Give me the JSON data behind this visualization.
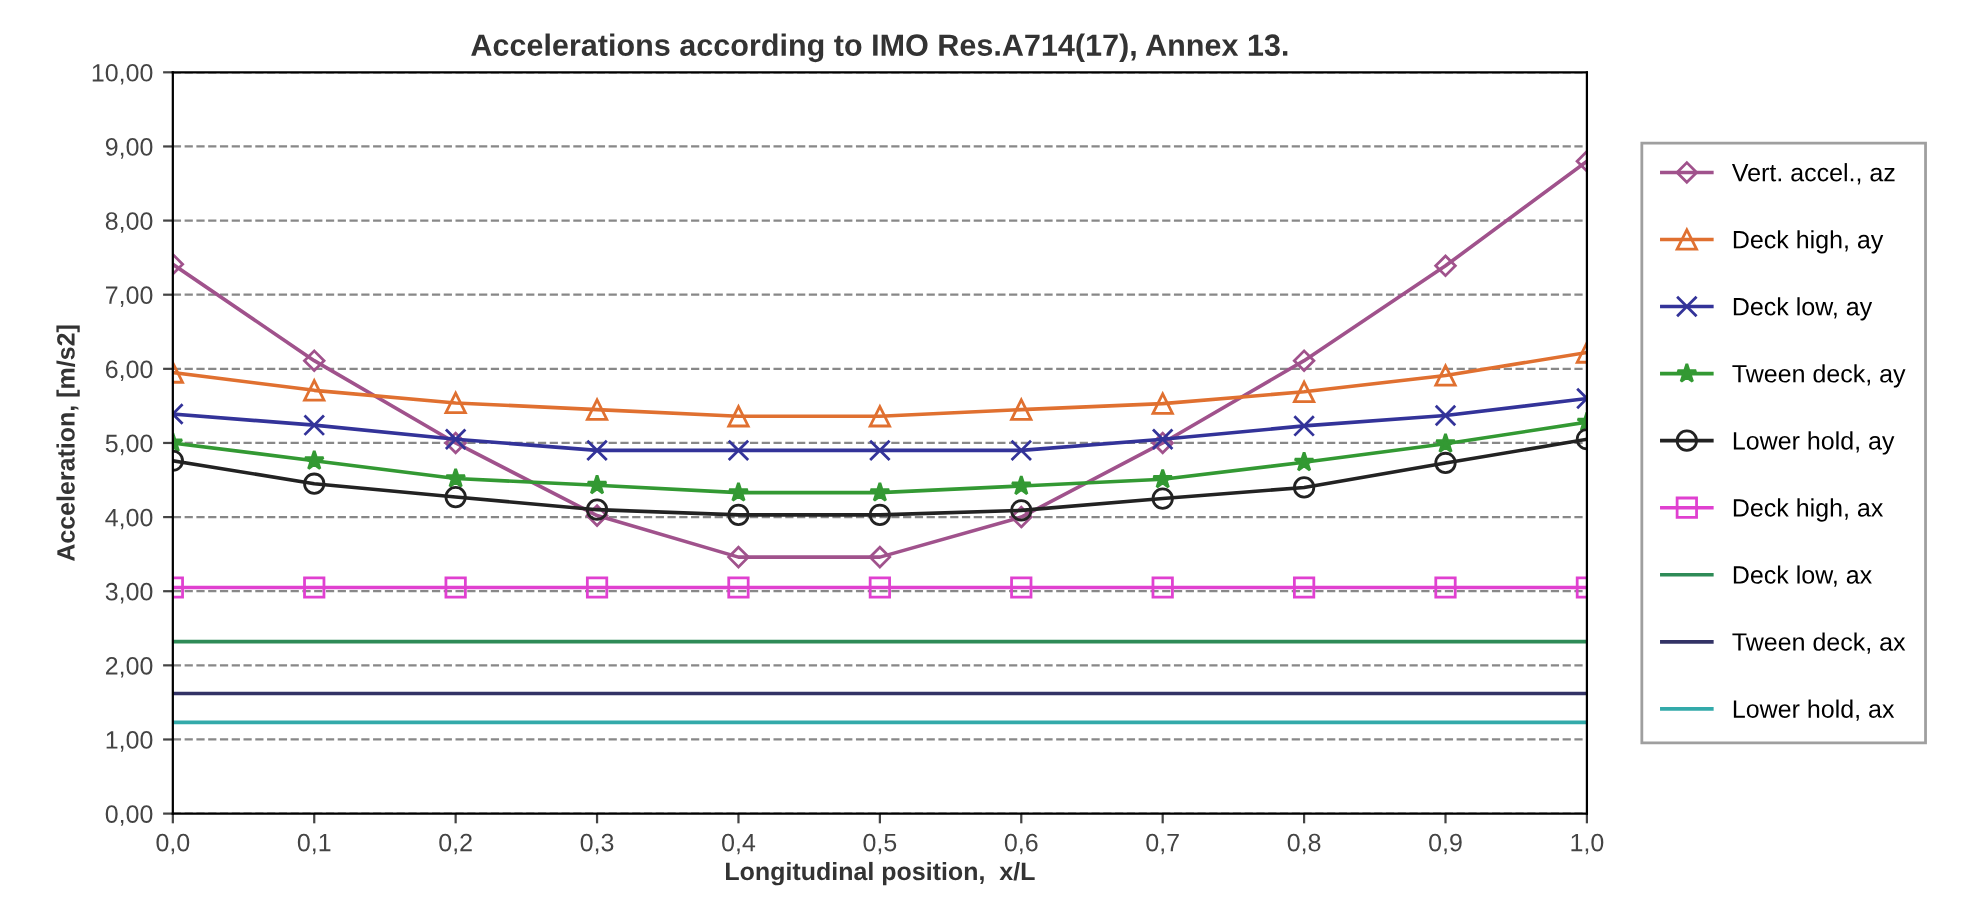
{
  "chart_data": {
    "type": "line",
    "title": "Accelerations according to IMO Res.A714(17), Annex 13.",
    "xlabel": "Longitudinal position,  x/L",
    "ylabel": "Acceleration, [m/s2]",
    "x": [
      0,
      0.1,
      0.2,
      0.3,
      0.4,
      0.5,
      0.6,
      0.7,
      0.8,
      0.9,
      1.0
    ],
    "xlim": [
      0,
      1
    ],
    "ylim": [
      0,
      10
    ],
    "xticks": [
      {
        "value": 0,
        "label": "0,0"
      },
      {
        "value": 0.1,
        "label": "0,1"
      },
      {
        "value": 0.2,
        "label": "0,2"
      },
      {
        "value": 0.3,
        "label": "0,3"
      },
      {
        "value": 0.4,
        "label": "0,4"
      },
      {
        "value": 0.5,
        "label": "0,5"
      },
      {
        "value": 0.6,
        "label": "0,6"
      },
      {
        "value": 0.7,
        "label": "0,7"
      },
      {
        "value": 0.8,
        "label": "0,8"
      },
      {
        "value": 0.9,
        "label": "0,9"
      },
      {
        "value": 1.0,
        "label": "1,0"
      }
    ],
    "yticks": [
      {
        "value": 0,
        "label": "0,00"
      },
      {
        "value": 1,
        "label": "1,00"
      },
      {
        "value": 2,
        "label": "2,00"
      },
      {
        "value": 3,
        "label": "3,00"
      },
      {
        "value": 4,
        "label": "4,00"
      },
      {
        "value": 5,
        "label": "5,00"
      },
      {
        "value": 6,
        "label": "6,00"
      },
      {
        "value": 7,
        "label": "7,00"
      },
      {
        "value": 8,
        "label": "8,00"
      },
      {
        "value": 9,
        "label": "9,00"
      },
      {
        "value": 10,
        "label": "10,00"
      }
    ],
    "grid": "y",
    "legend": "right",
    "line_style": "solid",
    "series": [
      {
        "name": "Vert. accel., az",
        "color": "#a0528c",
        "marker": "diamond",
        "values": [
          7.41,
          6.11,
          5.0,
          4.02,
          3.46,
          3.46,
          4.0,
          5.0,
          6.11,
          7.39,
          8.8
        ]
      },
      {
        "name": "Deck high, ay",
        "color": "#e07030",
        "marker": "triangle",
        "values": [
          5.95,
          5.71,
          5.54,
          5.45,
          5.36,
          5.36,
          5.45,
          5.53,
          5.69,
          5.91,
          6.22
        ]
      },
      {
        "name": "Deck low, ay",
        "color": "#333399",
        "marker": "cross",
        "values": [
          5.39,
          5.24,
          5.05,
          4.9,
          4.9,
          4.9,
          4.9,
          5.05,
          5.23,
          5.37,
          5.6
        ]
      },
      {
        "name": "Tween deck, ay",
        "color": "#339933",
        "marker": "star",
        "values": [
          5.0,
          4.76,
          4.52,
          4.43,
          4.33,
          4.33,
          4.42,
          4.51,
          4.74,
          4.99,
          5.28
        ]
      },
      {
        "name": "Lower hold, ay",
        "color": "#222222",
        "marker": "circle",
        "values": [
          4.76,
          4.45,
          4.27,
          4.1,
          4.03,
          4.03,
          4.09,
          4.25,
          4.4,
          4.73,
          5.05
        ]
      },
      {
        "name": "Deck high, ax",
        "color": "#e040d0",
        "marker": "square",
        "values": [
          3.05,
          3.05,
          3.05,
          3.05,
          3.05,
          3.05,
          3.05,
          3.05,
          3.05,
          3.05,
          3.05
        ]
      },
      {
        "name": "Deck low, ax",
        "color": "#2e8b57",
        "marker": "none",
        "values": [
          2.32,
          2.32,
          2.32,
          2.32,
          2.32,
          2.32,
          2.32,
          2.32,
          2.32,
          2.32,
          2.32
        ]
      },
      {
        "name": "Tween deck, ax",
        "color": "#333366",
        "marker": "none",
        "values": [
          1.62,
          1.62,
          1.62,
          1.62,
          1.62,
          1.62,
          1.62,
          1.62,
          1.62,
          1.62,
          1.62
        ]
      },
      {
        "name": "Lower hold, ax",
        "color": "#33aaaa",
        "marker": "none",
        "values": [
          1.23,
          1.23,
          1.23,
          1.23,
          1.23,
          1.23,
          1.23,
          1.23,
          1.23,
          1.23,
          1.23
        ]
      }
    ]
  }
}
